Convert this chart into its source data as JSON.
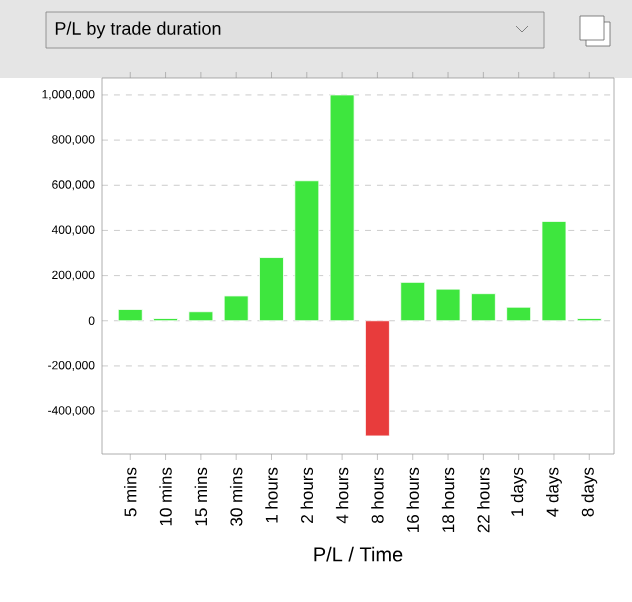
{
  "chart_data": {
    "type": "bar",
    "title": "P/L by trade duration",
    "xlabel": "P/L / Time",
    "categories": [
      "5 mins",
      "10 mins",
      "15 mins",
      "30 mins",
      "1 hours",
      "2 hours",
      "4 hours",
      "8 hours",
      "16 hours",
      "18 hours",
      "22 hours",
      "1 days",
      "4 days",
      "8 days"
    ],
    "values": [
      50000,
      10000,
      40000,
      110000,
      280000,
      620000,
      1000000,
      -510000,
      170000,
      140000,
      120000,
      60000,
      440000,
      10000
    ],
    "colors": [
      "#3ee63e",
      "#3ee63e",
      "#3ee63e",
      "#3ee63e",
      "#3ee63e",
      "#3ee63e",
      "#3ee63e",
      "#e83c3c",
      "#3ee63e",
      "#3ee63e",
      "#3ee63e",
      "#3ee63e",
      "#3ee63e",
      "#3ee63e"
    ],
    "ylim": [
      -590000,
      1075000
    ],
    "yticks": [
      {
        "value": -400000,
        "label": "-400,000"
      },
      {
        "value": -200000,
        "label": "-200,000"
      },
      {
        "value": 0,
        "label": "0"
      },
      {
        "value": 200000,
        "label": "200,000"
      },
      {
        "value": 400000,
        "label": "400,000"
      },
      {
        "value": 600000,
        "label": "600,000"
      },
      {
        "value": 800000,
        "label": "800,000"
      },
      {
        "value": 1000000,
        "label": "1,000,000"
      }
    ],
    "grid": "y"
  }
}
